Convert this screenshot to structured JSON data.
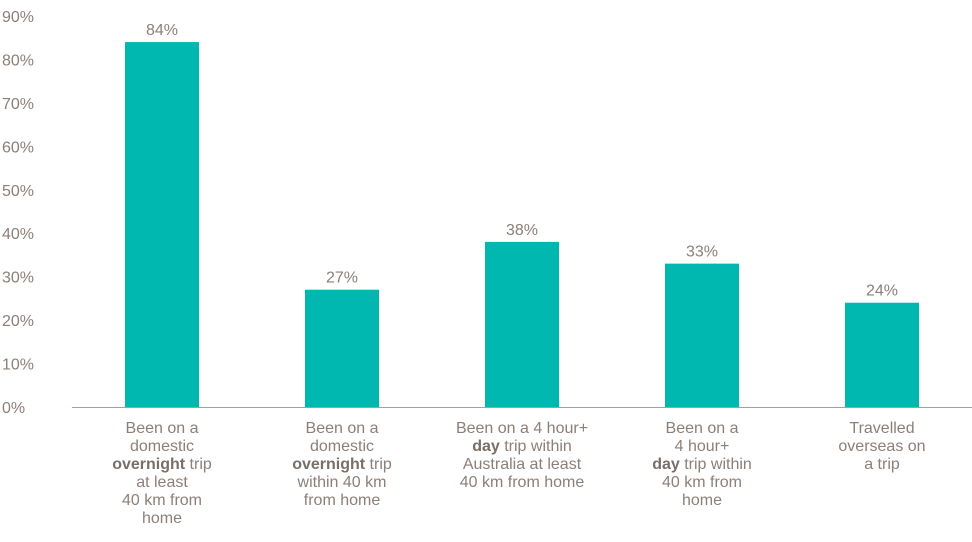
{
  "chart_data": {
    "type": "bar",
    "categories": [
      {
        "id": "c0",
        "lines": [
          [
            {
              "t": "Been on a"
            }
          ],
          [
            {
              "t": "domestic"
            }
          ],
          [
            {
              "t": "overnight",
              "b": true
            },
            {
              "t": " trip"
            }
          ],
          [
            {
              "t": "at least"
            }
          ],
          [
            {
              "t": "40 km from"
            }
          ],
          [
            {
              "t": "home"
            }
          ]
        ]
      },
      {
        "id": "c1",
        "lines": [
          [
            {
              "t": "Been on a"
            }
          ],
          [
            {
              "t": "domestic"
            }
          ],
          [
            {
              "t": "overnight",
              "b": true
            },
            {
              "t": " trip"
            }
          ],
          [
            {
              "t": "within 40 km"
            }
          ],
          [
            {
              "t": "from home"
            }
          ]
        ]
      },
      {
        "id": "c2",
        "lines": [
          [
            {
              "t": "Been on a 4 hour+"
            }
          ],
          [
            {
              "t": "day",
              "b": true
            },
            {
              "t": " trip within"
            }
          ],
          [
            {
              "t": "Australia at least"
            }
          ],
          [
            {
              "t": "40 km from home"
            }
          ]
        ]
      },
      {
        "id": "c3",
        "lines": [
          [
            {
              "t": "Been on a"
            }
          ],
          [
            {
              "t": "4 hour+"
            }
          ],
          [
            {
              "t": "day",
              "b": true
            },
            {
              "t": " trip within"
            }
          ],
          [
            {
              "t": "40 km from"
            }
          ],
          [
            {
              "t": "home"
            }
          ]
        ]
      },
      {
        "id": "c4",
        "lines": [
          [
            {
              "t": "Travelled"
            }
          ],
          [
            {
              "t": "overseas on"
            }
          ],
          [
            {
              "t": "a trip"
            }
          ]
        ]
      }
    ],
    "values": [
      84,
      27,
      38,
      33,
      24
    ],
    "data_labels": [
      "84%",
      "27%",
      "38%",
      "33%",
      "24%"
    ],
    "ylim": [
      0,
      90
    ],
    "yticks": [
      0,
      10,
      20,
      30,
      40,
      50,
      60,
      70,
      80,
      90
    ],
    "ytick_labels": [
      "0%",
      "10%",
      "20%",
      "30%",
      "40%",
      "50%",
      "60%",
      "70%",
      "80%",
      "90%"
    ],
    "grid": false,
    "legend": "none",
    "colors": {
      "bar": "#00b8b0",
      "text": "#8c7f78",
      "axis": "#a89d97"
    }
  }
}
